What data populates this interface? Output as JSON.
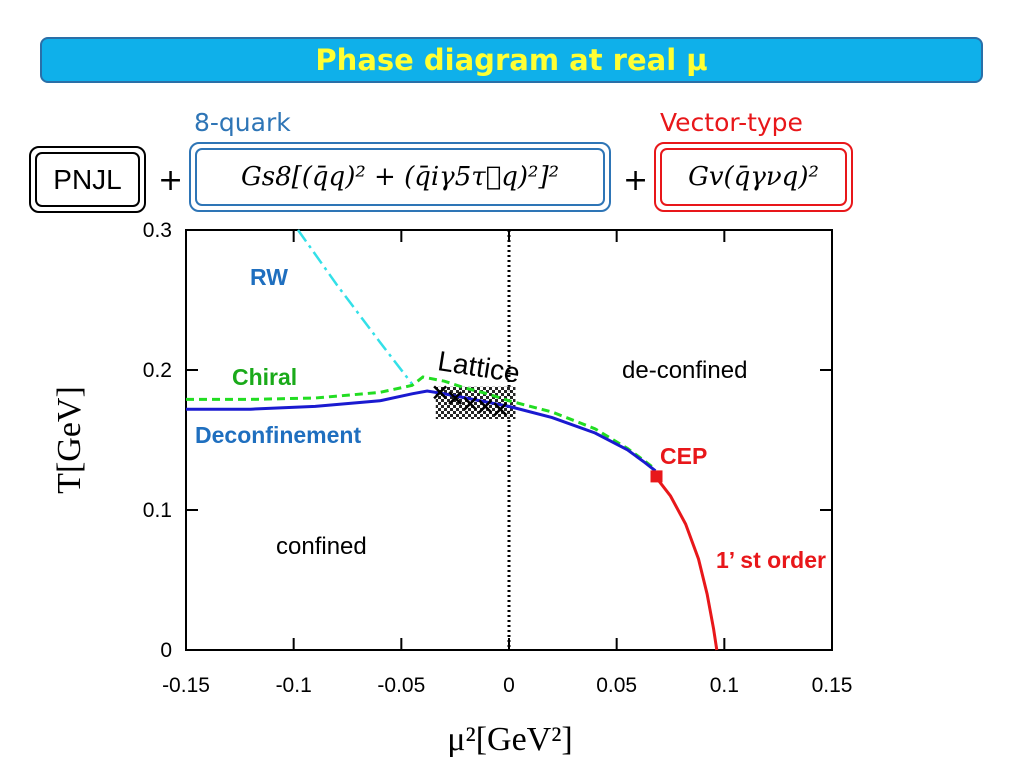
{
  "slide_title": "Phase diagram at real μ",
  "model": {
    "pnjl_label": "PNJL",
    "plus": "+",
    "eight_quark_label": "8-quark",
    "eight_quark_formula": "Gs8[(q̄q)² + (q̄iγ5τ⃗q)²]²",
    "vector_label": "Vector-type",
    "vector_formula": "Gv(q̄γνq)²"
  },
  "colors": {
    "title_bg": "#0fb0ea",
    "title_text": "#ffff33",
    "eight_quark": "#2e75b6",
    "vector": "#e8171a",
    "rw_line": "#33e0e8",
    "chiral_line": "#22dd22",
    "deconf_line": "#1a1ad0",
    "first_order": "#e8171a",
    "label_blue": "#1f6fbf",
    "label_green": "#1aaa1a"
  },
  "chart_data": {
    "type": "line",
    "xlabel": "μ²[GeV²]",
    "ylabel": "T[GeV]",
    "xlim": [
      -0.15,
      0.15
    ],
    "ylim": [
      0,
      0.3
    ],
    "x_ticks": [
      "-0.15",
      "-0.1",
      "-0.05",
      "0",
      "0.05",
      "0.1",
      "0.15"
    ],
    "y_ticks": [
      "0",
      "0.1",
      "0.2",
      "0.3"
    ],
    "series": [
      {
        "name": "RW",
        "style": "dash-dot",
        "x": [
          -0.098,
          -0.08,
          -0.06,
          -0.045
        ],
        "y": [
          0.3,
          0.261,
          0.22,
          0.19
        ]
      },
      {
        "name": "Chiral",
        "style": "dashed",
        "x": [
          -0.15,
          -0.12,
          -0.09,
          -0.06,
          -0.045,
          -0.04,
          -0.03,
          -0.02,
          -0.01,
          0,
          0.02,
          0.04,
          0.055,
          0.063,
          0.068
        ],
        "y": [
          0.179,
          0.179,
          0.18,
          0.184,
          0.189,
          0.195,
          0.192,
          0.187,
          0.183,
          0.178,
          0.17,
          0.158,
          0.144,
          0.135,
          0.129
        ]
      },
      {
        "name": "Deconfinement",
        "style": "solid",
        "x": [
          -0.15,
          -0.12,
          -0.09,
          -0.06,
          -0.045,
          -0.038,
          -0.03,
          -0.02,
          -0.01,
          0,
          0.02,
          0.04,
          0.055,
          0.063,
          0.068
        ],
        "y": [
          0.172,
          0.172,
          0.174,
          0.178,
          0.183,
          0.185,
          0.183,
          0.18,
          0.177,
          0.174,
          0.166,
          0.155,
          0.143,
          0.134,
          0.128
        ]
      },
      {
        "name": "1’ st order",
        "style": "solid",
        "x": [
          0.068,
          0.075,
          0.082,
          0.088,
          0.092,
          0.095,
          0.0965
        ],
        "y": [
          0.124,
          0.11,
          0.09,
          0.065,
          0.04,
          0.015,
          0
        ]
      }
    ],
    "cep": {
      "x": 0.0685,
      "y": 0.124
    },
    "lattice_points": {
      "x": [
        -0.032,
        -0.025,
        -0.018,
        -0.011,
        -0.004
      ],
      "y": [
        0.184,
        0.18,
        0.176,
        0.174,
        0.172
      ]
    },
    "lattice_band": {
      "x": [
        -0.034,
        0.003
      ],
      "y": [
        0.165,
        0.188
      ]
    },
    "zero_line_x": 0,
    "annotations": {
      "rw": "RW",
      "chiral": "Chiral",
      "deconfinement": "Deconfinement",
      "lattice": "Lattice",
      "deconfined": "de-confined",
      "confined": "confined",
      "cep": "CEP",
      "first_order": "1’ st order"
    }
  }
}
